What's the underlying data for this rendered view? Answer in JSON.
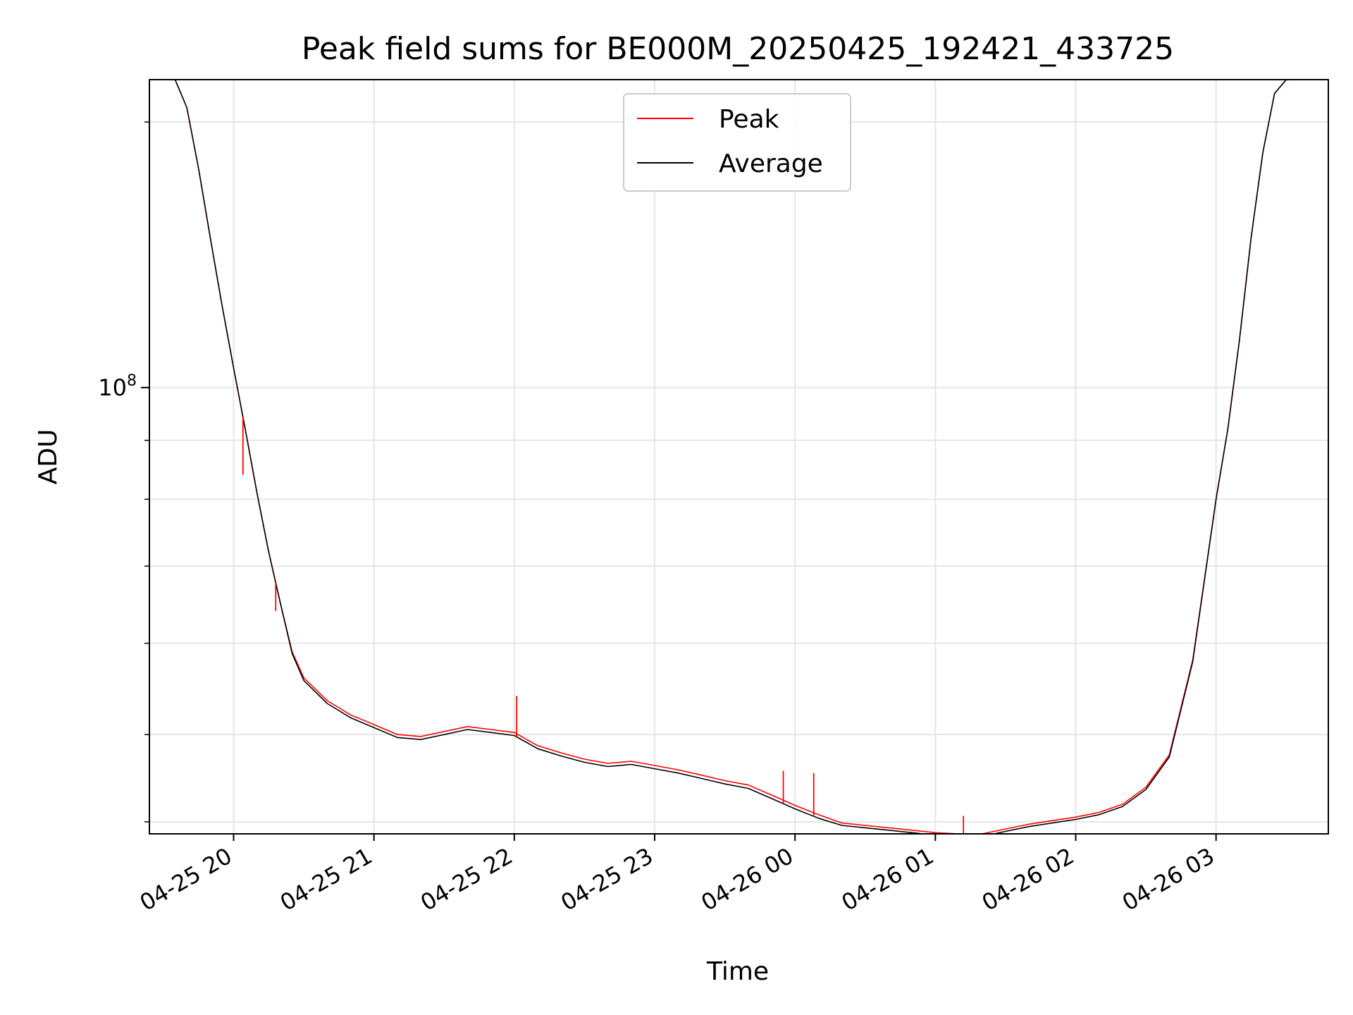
{
  "chart_data": {
    "type": "line",
    "title": "Peak field sums for BE000M_20250425_192421_433725",
    "xlabel": "Time",
    "ylabel": "ADU",
    "x_scale": "time",
    "y_scale": "log",
    "xlim": [
      "2025-04-25T19:24",
      "2025-04-26T03:48"
    ],
    "ylim": [
      41000000,
      185000000
    ],
    "grid": true,
    "legend_position": "upper center",
    "x_tick_labels": [
      "04-25 20",
      "04-25 21",
      "04-25 22",
      "04-25 23",
      "04-26 00",
      "04-26 01",
      "04-26 02",
      "04-26 03"
    ],
    "x_ticks": [
      "2025-04-25T20:00",
      "2025-04-25T21:00",
      "2025-04-25T22:00",
      "2025-04-25T23:00",
      "2025-04-26T00:00",
      "2025-04-26T01:00",
      "2025-04-26T02:00",
      "2025-04-26T03:00"
    ],
    "y_major_tick": {
      "value": 100000000,
      "label_base": "10",
      "label_exp": "8"
    },
    "y_minor_ticks": [
      42000000,
      50000000,
      60000000,
      70000000,
      80000000,
      90000000,
      170000000
    ],
    "series": [
      {
        "name": "Peak",
        "color": "#ff0000",
        "x": [
          "2025-04-25T19:24",
          "2025-04-25T19:35",
          "2025-04-25T19:40",
          "2025-04-25T19:45",
          "2025-04-25T19:50",
          "2025-04-25T19:55",
          "2025-04-25T20:00",
          "2025-04-25T20:05",
          "2025-04-25T20:10",
          "2025-04-25T20:15",
          "2025-04-25T20:20",
          "2025-04-25T20:25",
          "2025-04-25T20:30",
          "2025-04-25T20:40",
          "2025-04-25T20:50",
          "2025-04-25T21:00",
          "2025-04-25T21:10",
          "2025-04-25T21:20",
          "2025-04-25T21:30",
          "2025-04-25T21:40",
          "2025-04-25T21:50",
          "2025-04-25T22:00",
          "2025-04-25T22:10",
          "2025-04-25T22:20",
          "2025-04-25T22:30",
          "2025-04-25T22:40",
          "2025-04-25T22:50",
          "2025-04-25T23:00",
          "2025-04-25T23:10",
          "2025-04-25T23:20",
          "2025-04-25T23:30",
          "2025-04-25T23:40",
          "2025-04-25T23:50",
          "2025-04-26T00:00",
          "2025-04-26T00:10",
          "2025-04-26T00:20",
          "2025-04-26T00:30",
          "2025-04-26T00:40",
          "2025-04-26T00:50",
          "2025-04-26T01:00",
          "2025-04-26T01:10",
          "2025-04-26T01:20",
          "2025-04-26T01:30",
          "2025-04-26T01:40",
          "2025-04-26T01:50",
          "2025-04-26T02:00",
          "2025-04-26T02:10",
          "2025-04-26T02:20",
          "2025-04-26T02:30",
          "2025-04-26T02:40",
          "2025-04-26T02:50",
          "2025-04-26T03:00",
          "2025-04-26T03:05",
          "2025-04-26T03:10",
          "2025-04-26T03:15",
          "2025-04-26T03:20",
          "2025-04-26T03:25",
          "2025-04-26T03:30",
          "2025-04-26T03:48"
        ],
        "values": [
          185000000,
          185000000,
          175000000,
          155000000,
          135000000,
          118000000,
          104000000,
          92000000,
          81000000,
          72000000,
          65000000,
          59000000,
          56000000,
          53500000,
          52000000,
          51000000,
          50000000,
          49800000,
          50300000,
          50800000,
          50500000,
          50200000,
          48900000,
          48200000,
          47600000,
          47200000,
          47400000,
          47000000,
          46600000,
          46100000,
          45600000,
          45200000,
          44300000,
          43400000,
          42600000,
          41900000,
          41700000,
          41500000,
          41300000,
          41100000,
          41000000,
          41000000,
          41400000,
          41800000,
          42100000,
          42400000,
          42800000,
          43500000,
          45000000,
          48000000,
          58000000,
          80000000,
          92000000,
          110000000,
          135000000,
          160000000,
          180000000,
          185000000,
          185000000
        ]
      },
      {
        "name": "Average",
        "color": "#000000",
        "x": [
          "2025-04-25T19:24",
          "2025-04-25T19:35",
          "2025-04-25T19:40",
          "2025-04-25T19:45",
          "2025-04-25T19:50",
          "2025-04-25T19:55",
          "2025-04-25T20:00",
          "2025-04-25T20:05",
          "2025-04-25T20:10",
          "2025-04-25T20:15",
          "2025-04-25T20:20",
          "2025-04-25T20:25",
          "2025-04-25T20:30",
          "2025-04-25T20:40",
          "2025-04-25T20:50",
          "2025-04-25T21:00",
          "2025-04-25T21:10",
          "2025-04-25T21:20",
          "2025-04-25T21:30",
          "2025-04-25T21:40",
          "2025-04-25T21:50",
          "2025-04-25T22:00",
          "2025-04-25T22:10",
          "2025-04-25T22:20",
          "2025-04-25T22:30",
          "2025-04-25T22:40",
          "2025-04-25T22:50",
          "2025-04-25T23:00",
          "2025-04-25T23:10",
          "2025-04-25T23:20",
          "2025-04-25T23:30",
          "2025-04-25T23:40",
          "2025-04-25T23:50",
          "2025-04-26T00:00",
          "2025-04-26T00:10",
          "2025-04-26T00:20",
          "2025-04-26T00:30",
          "2025-04-26T00:40",
          "2025-04-26T00:50",
          "2025-04-26T01:00",
          "2025-04-26T01:10",
          "2025-04-26T01:20",
          "2025-04-26T01:30",
          "2025-04-26T01:40",
          "2025-04-26T01:50",
          "2025-04-26T02:00",
          "2025-04-26T02:10",
          "2025-04-26T02:20",
          "2025-04-26T02:30",
          "2025-04-26T02:40",
          "2025-04-26T02:50",
          "2025-04-26T03:00",
          "2025-04-26T03:05",
          "2025-04-26T03:10",
          "2025-04-26T03:15",
          "2025-04-26T03:20",
          "2025-04-26T03:25",
          "2025-04-26T03:30",
          "2025-04-26T03:48"
        ],
        "values": [
          185000000,
          185000000,
          175000000,
          155000000,
          135000000,
          118000000,
          104000000,
          92000000,
          81000000,
          72000000,
          65000000,
          58800000,
          55700000,
          53200000,
          51700000,
          50700000,
          49700000,
          49500000,
          50000000,
          50500000,
          50200000,
          49900000,
          48600000,
          47900000,
          47300000,
          46900000,
          47100000,
          46700000,
          46300000,
          45800000,
          45300000,
          44900000,
          44000000,
          43100000,
          42300000,
          41700000,
          41500000,
          41300000,
          41100000,
          40900000,
          40800000,
          40800000,
          41200000,
          41600000,
          41900000,
          42200000,
          42600000,
          43300000,
          44800000,
          47800000,
          57800000,
          80000000,
          92000000,
          110000000,
          135000000,
          160000000,
          180000000,
          185000000,
          185000000
        ]
      }
    ],
    "peak_spikes": [
      {
        "x": "2025-04-25T20:04",
        "value": 84000000
      },
      {
        "x": "2025-04-25T20:18",
        "value": 64000000
      },
      {
        "x": "2025-04-25T22:01",
        "value": 54000000
      },
      {
        "x": "2025-04-25T23:55",
        "value": 46500000
      },
      {
        "x": "2025-04-26T00:08",
        "value": 46300000
      },
      {
        "x": "2025-04-26T01:12",
        "value": 42500000
      }
    ]
  }
}
